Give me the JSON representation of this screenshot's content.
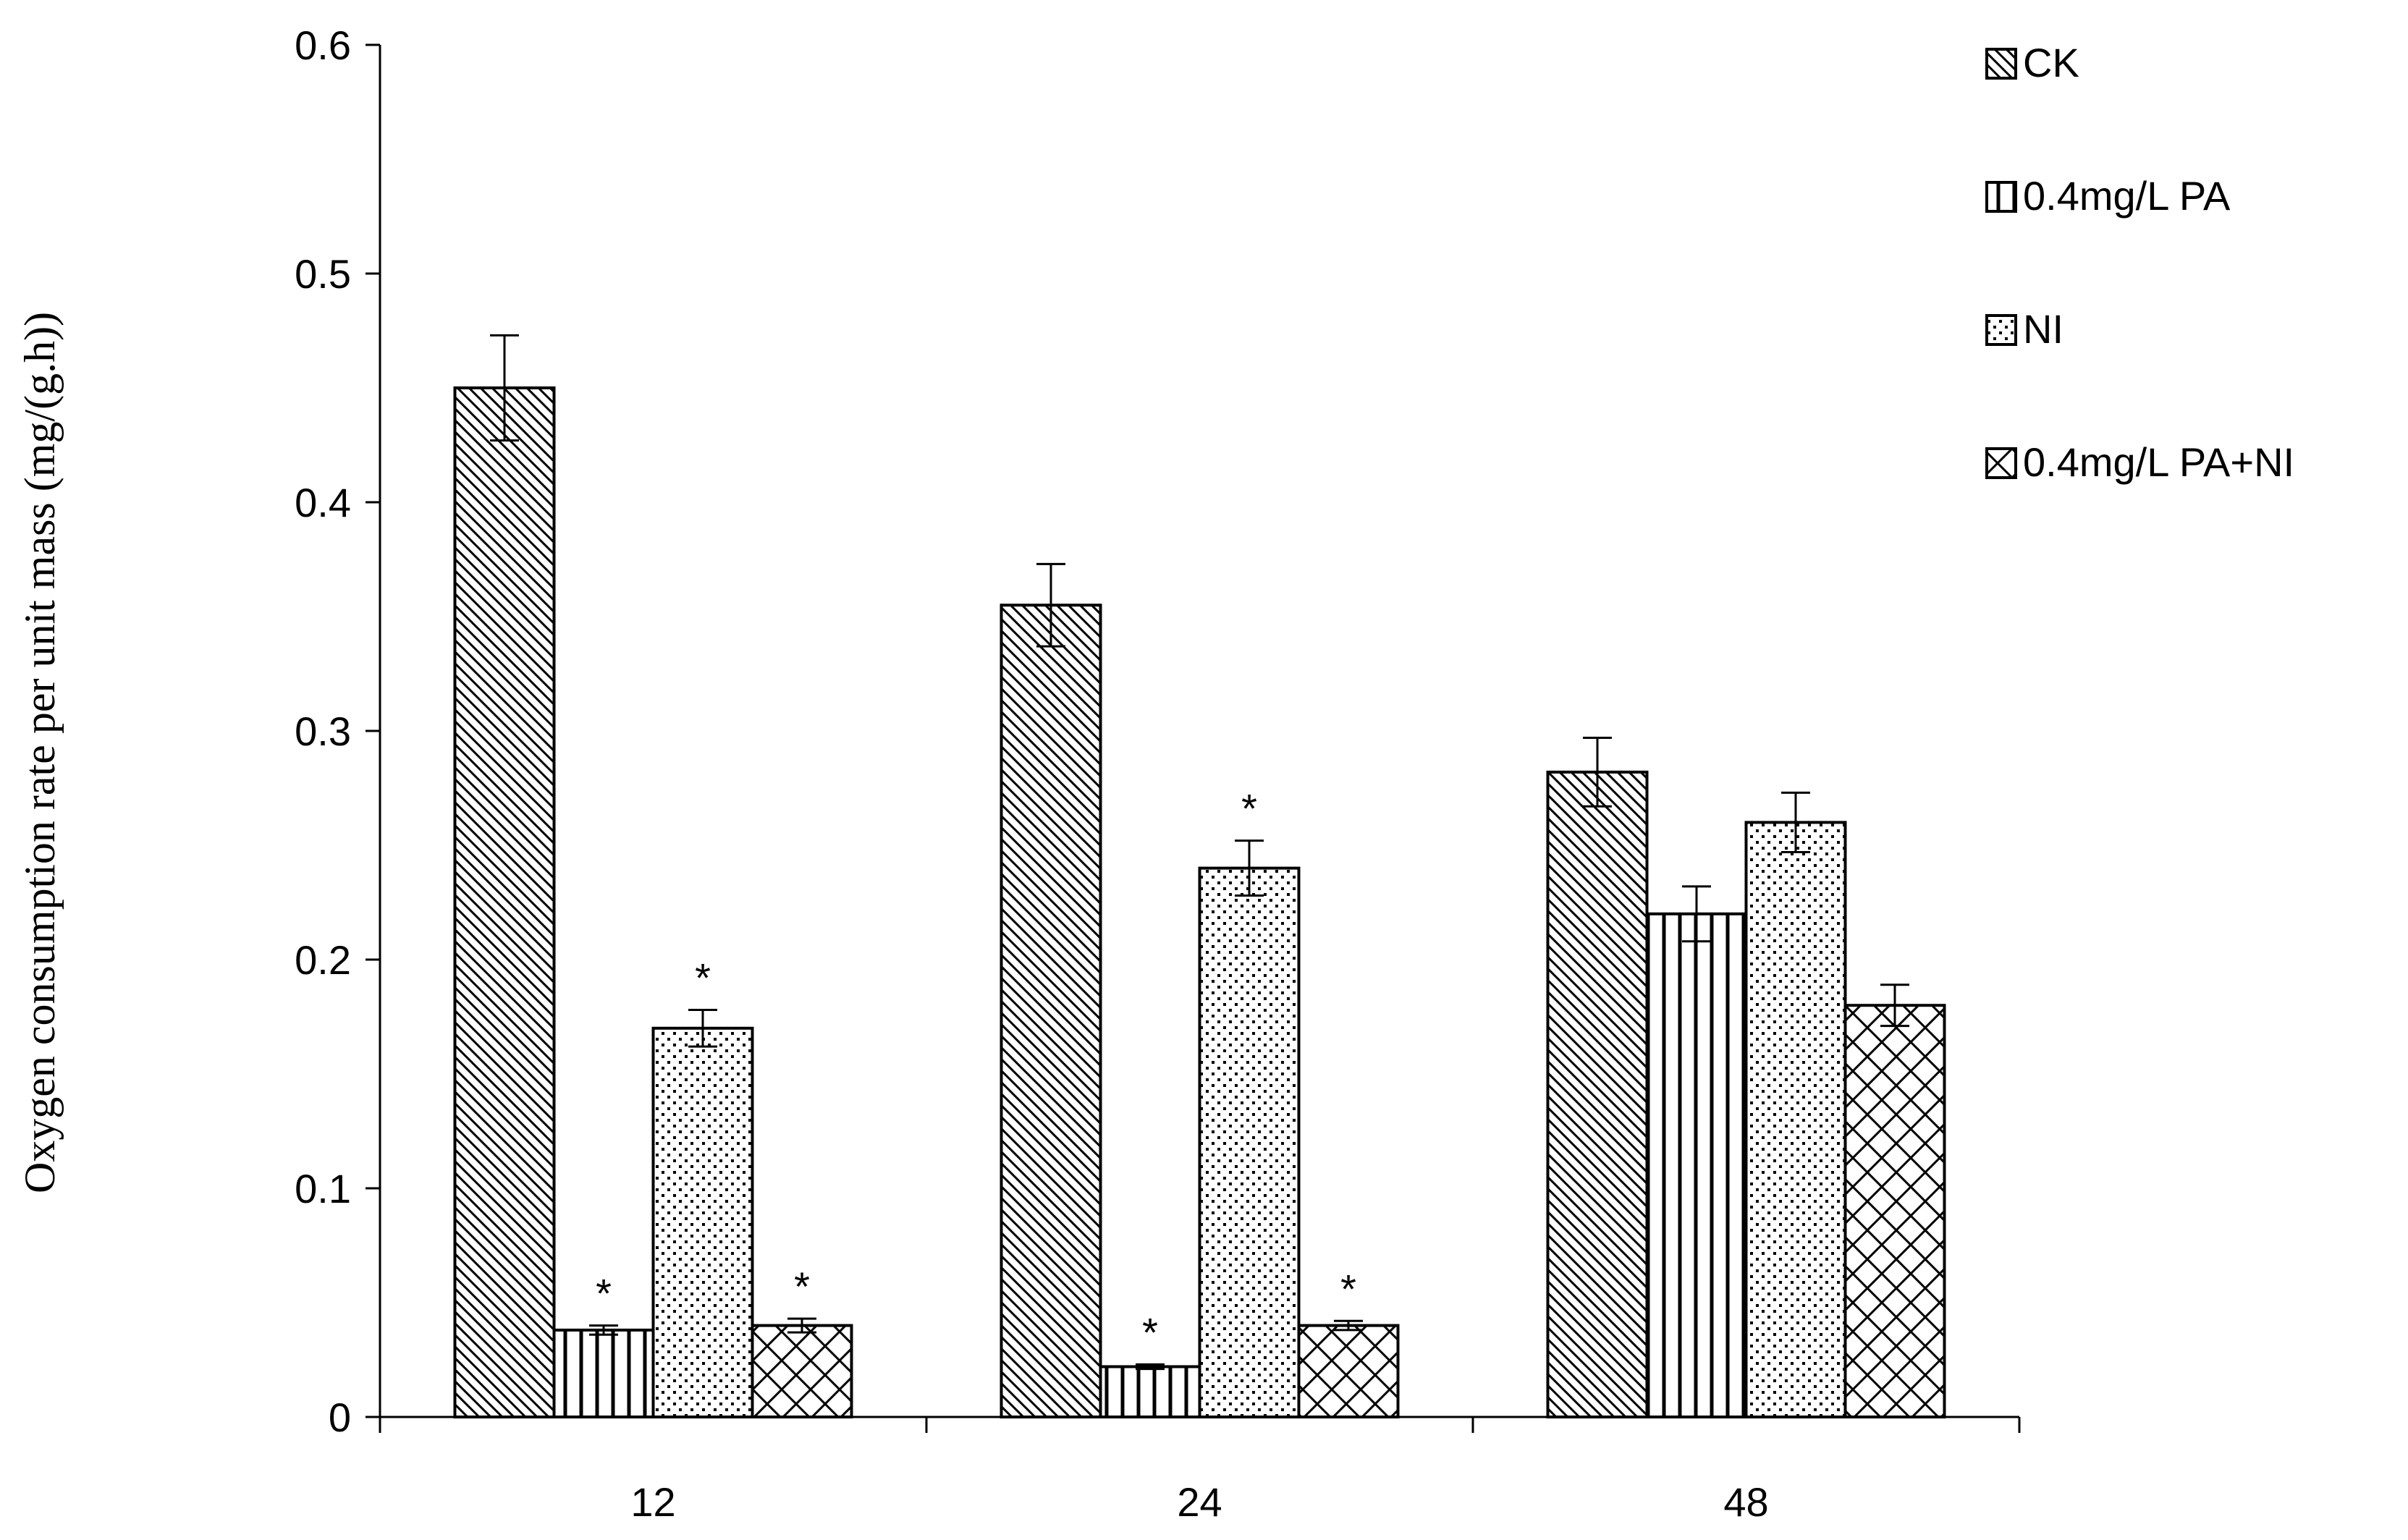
{
  "chart_data": {
    "type": "bar",
    "title": "",
    "xlabel": "",
    "ylabel": "Oxygen consumption rate per unit mass (mg/(g.h))",
    "categories": [
      "12",
      "24",
      "48"
    ],
    "ylim": [
      0,
      0.6
    ],
    "yticks": [
      0,
      0.1,
      0.2,
      0.3,
      0.4,
      0.5,
      0.6
    ],
    "ytick_labels": [
      "0",
      "0.1",
      "0.2",
      "0.3",
      "0.4",
      "0.5",
      "0.6"
    ],
    "grid": false,
    "legend_position": "top-right",
    "significance_marker": "*",
    "series": [
      {
        "name": "CK",
        "pattern": "diagonal",
        "values": [
          0.45,
          0.355,
          0.282
        ],
        "errors": [
          0.023,
          0.018,
          0.015
        ],
        "significant": [
          false,
          false,
          false
        ]
      },
      {
        "name": "0.4mg/L PA",
        "pattern": "vertical",
        "values": [
          0.038,
          0.022,
          0.22
        ],
        "errors": [
          0.002,
          0.001,
          0.012
        ],
        "significant": [
          true,
          true,
          false
        ]
      },
      {
        "name": "NI",
        "pattern": "dots",
        "values": [
          0.17,
          0.24,
          0.26
        ],
        "errors": [
          0.008,
          0.012,
          0.013
        ],
        "significant": [
          true,
          true,
          false
        ]
      },
      {
        "name": "0.4mg/L PA+NI",
        "pattern": "crosshatch",
        "values": [
          0.04,
          0.04,
          0.18
        ],
        "errors": [
          0.003,
          0.002,
          0.009
        ],
        "significant": [
          true,
          true,
          false
        ]
      }
    ],
    "colors": {
      "stroke": "#000000",
      "background": "#ffffff"
    }
  }
}
